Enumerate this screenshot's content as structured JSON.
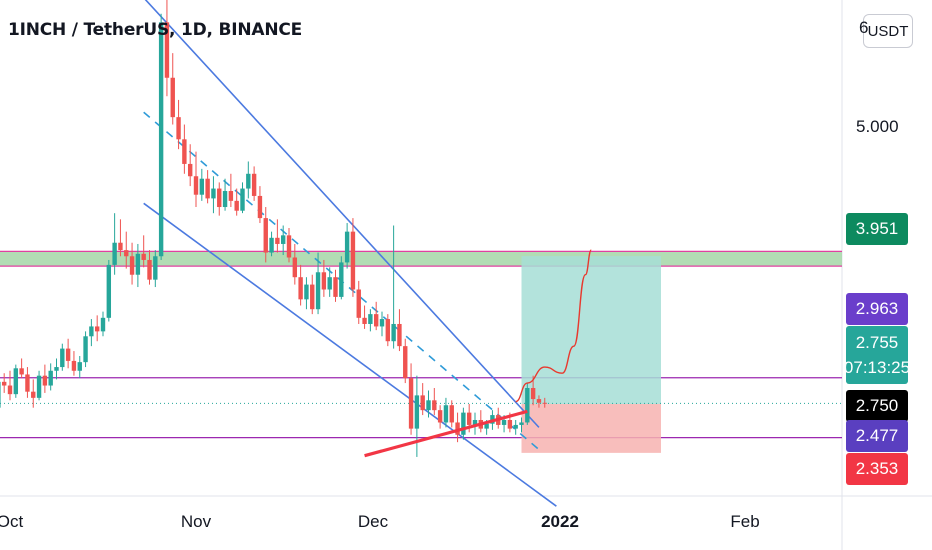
{
  "header": {
    "title": "1INCH / TetherUS, 1D, BINANCE",
    "currency_button": "USDT"
  },
  "price_axis": {
    "labels": [
      {
        "id": "top",
        "text": "6"
      },
      {
        "id": "five",
        "text": "5.000"
      }
    ],
    "tags": [
      {
        "id": "resistance",
        "text": "3.951",
        "color": "#0d8a5f"
      },
      {
        "id": "upper",
        "text": "2.963",
        "color": "#6a3ecb"
      },
      {
        "id": "last",
        "text": "2.755",
        "sub": "07:13:25",
        "color": "#26a69a"
      },
      {
        "id": "entry",
        "text": "2.750",
        "color": "#000000"
      },
      {
        "id": "lower",
        "text": "2.477",
        "color": "#5a3fc0"
      },
      {
        "id": "stop",
        "text": "2.353",
        "color": "#f23645"
      }
    ]
  },
  "time_axis": {
    "labels": [
      {
        "text": "Oct",
        "bold": false
      },
      {
        "text": "Nov",
        "bold": false
      },
      {
        "text": "Dec",
        "bold": false
      },
      {
        "text": "2022",
        "bold": true
      },
      {
        "text": "Feb",
        "bold": false
      }
    ]
  },
  "colors": {
    "up": "#26a69a",
    "down": "#ef5350",
    "channel": "#4c7ae0",
    "support": "#f23645",
    "level": "#9c27b0",
    "zone": "#a5d6a7",
    "target_zone": "#a6ded6",
    "stop_zone": "#f7b3b0"
  },
  "chart_data": {
    "type": "candlestick",
    "title": "1INCH / TetherUS, 1D, BINANCE",
    "xlabel": "",
    "ylabel": "",
    "y_unit": "USDT",
    "x_range": [
      "2021-09-28",
      "2022-02-28"
    ],
    "y_range": [
      2.05,
      6.2
    ],
    "start_date": "2021-09-28",
    "last_price": 2.755,
    "countdown": "07:13:25",
    "ohlc": [
      [
        2.58,
        2.75,
        2.52,
        2.72
      ],
      [
        2.72,
        2.98,
        2.68,
        2.93
      ],
      [
        2.93,
        3.0,
        2.84,
        2.9
      ],
      [
        2.9,
        3.02,
        2.78,
        2.83
      ],
      [
        2.83,
        3.07,
        2.8,
        3.04
      ],
      [
        3.04,
        3.12,
        2.96,
        2.99
      ],
      [
        2.99,
        3.05,
        2.8,
        2.85
      ],
      [
        2.85,
        2.95,
        2.72,
        2.8
      ],
      [
        2.8,
        3.02,
        2.78,
        2.98
      ],
      [
        2.98,
        3.07,
        2.84,
        2.9
      ],
      [
        2.9,
        3.08,
        2.86,
        3.02
      ],
      [
        3.02,
        3.12,
        2.95,
        3.05
      ],
      [
        3.05,
        3.24,
        3.02,
        3.2
      ],
      [
        3.2,
        3.28,
        3.04,
        3.1
      ],
      [
        3.1,
        3.18,
        2.98,
        3.02
      ],
      [
        3.02,
        3.14,
        2.96,
        3.09
      ],
      [
        3.09,
        3.34,
        3.05,
        3.3
      ],
      [
        3.3,
        3.44,
        3.22,
        3.38
      ],
      [
        3.38,
        3.47,
        3.26,
        3.34
      ],
      [
        3.34,
        3.5,
        3.3,
        3.45
      ],
      [
        3.45,
        3.92,
        3.42,
        3.88
      ],
      [
        3.88,
        4.3,
        3.8,
        4.06
      ],
      [
        4.06,
        4.25,
        3.95,
        4.0
      ],
      [
        4.0,
        4.15,
        3.85,
        3.95
      ],
      [
        3.95,
        4.06,
        3.72,
        3.8
      ],
      [
        3.8,
        4.05,
        3.7,
        3.97
      ],
      [
        3.97,
        4.12,
        3.86,
        3.92
      ],
      [
        3.92,
        4.0,
        3.72,
        3.76
      ],
      [
        3.76,
        4.0,
        3.7,
        3.95
      ],
      [
        3.95,
        5.92,
        3.92,
        5.85
      ],
      [
        5.85,
        6.12,
        5.25,
        5.4
      ],
      [
        5.4,
        5.6,
        5.02,
        5.08
      ],
      [
        5.08,
        5.22,
        4.82,
        4.9
      ],
      [
        4.9,
        5.02,
        4.62,
        4.7
      ],
      [
        4.7,
        4.86,
        4.52,
        4.6
      ],
      [
        4.6,
        4.8,
        4.35,
        4.45
      ],
      [
        4.45,
        4.66,
        4.4,
        4.58
      ],
      [
        4.58,
        4.65,
        4.38,
        4.42
      ],
      [
        4.42,
        4.6,
        4.3,
        4.5
      ],
      [
        4.5,
        4.55,
        4.28,
        4.35
      ],
      [
        4.35,
        4.58,
        4.32,
        4.48
      ],
      [
        4.48,
        4.62,
        4.35,
        4.4
      ],
      [
        4.4,
        4.5,
        4.28,
        4.32
      ],
      [
        4.32,
        4.55,
        4.3,
        4.5
      ],
      [
        4.5,
        4.72,
        4.42,
        4.62
      ],
      [
        4.62,
        4.68,
        4.4,
        4.44
      ],
      [
        4.44,
        4.52,
        4.22,
        4.26
      ],
      [
        4.26,
        4.35,
        3.9,
        3.98
      ],
      [
        3.98,
        4.15,
        3.95,
        4.1
      ],
      [
        4.1,
        4.25,
        3.98,
        4.05
      ],
      [
        4.05,
        4.2,
        3.96,
        4.12
      ],
      [
        4.12,
        4.18,
        3.9,
        3.94
      ],
      [
        3.94,
        4.05,
        3.72,
        3.78
      ],
      [
        3.78,
        3.88,
        3.55,
        3.6
      ],
      [
        3.6,
        3.78,
        3.52,
        3.72
      ],
      [
        3.72,
        3.8,
        3.48,
        3.52
      ],
      [
        3.52,
        3.98,
        3.48,
        3.82
      ],
      [
        3.82,
        3.92,
        3.62,
        3.68
      ],
      [
        3.68,
        3.86,
        3.62,
        3.78
      ],
      [
        3.78,
        3.84,
        3.58,
        3.62
      ],
      [
        3.62,
        3.95,
        3.6,
        3.9
      ],
      [
        3.9,
        4.22,
        3.85,
        4.15
      ],
      [
        4.15,
        4.26,
        3.62,
        3.68
      ],
      [
        3.68,
        3.75,
        3.4,
        3.45
      ],
      [
        3.45,
        3.55,
        3.36,
        3.4
      ],
      [
        3.4,
        3.52,
        3.34,
        3.48
      ],
      [
        3.48,
        3.58,
        3.35,
        3.38
      ],
      [
        3.38,
        3.5,
        3.3,
        3.44
      ],
      [
        3.44,
        3.48,
        3.22,
        3.26
      ],
      [
        3.26,
        4.2,
        3.2,
        3.4
      ],
      [
        3.4,
        3.52,
        3.18,
        3.22
      ],
      [
        3.22,
        3.28,
        2.92,
        2.96
      ],
      [
        2.96,
        3.08,
        2.5,
        2.55
      ],
      [
        2.55,
        2.98,
        2.32,
        2.82
      ],
      [
        2.82,
        2.92,
        2.66,
        2.7
      ],
      [
        2.7,
        2.86,
        2.64,
        2.78
      ],
      [
        2.78,
        2.88,
        2.66,
        2.7
      ],
      [
        2.7,
        2.74,
        2.55,
        2.6
      ],
      [
        2.6,
        2.8,
        2.56,
        2.74
      ],
      [
        2.74,
        2.78,
        2.56,
        2.6
      ],
      [
        2.6,
        2.68,
        2.44,
        2.5
      ],
      [
        2.5,
        2.72,
        2.46,
        2.68
      ],
      [
        2.68,
        2.75,
        2.52,
        2.58
      ],
      [
        2.58,
        2.68,
        2.5,
        2.62
      ],
      [
        2.62,
        2.7,
        2.52,
        2.55
      ],
      [
        2.55,
        2.62,
        2.5,
        2.59
      ],
      [
        2.59,
        2.7,
        2.54,
        2.66
      ],
      [
        2.66,
        2.72,
        2.55,
        2.58
      ],
      [
        2.58,
        2.66,
        2.52,
        2.62
      ],
      [
        2.62,
        2.68,
        2.52,
        2.55
      ],
      [
        2.55,
        2.62,
        2.5,
        2.58
      ],
      [
        2.58,
        2.64,
        2.52,
        2.6
      ],
      [
        2.6,
        2.92,
        2.58,
        2.88
      ],
      [
        2.88,
        2.98,
        2.74,
        2.79
      ],
      [
        2.79,
        2.82,
        2.72,
        2.76
      ],
      [
        2.76,
        2.8,
        2.72,
        2.755
      ]
    ],
    "horizontal_levels": [
      2.963,
      2.477
    ],
    "resistance_zone": [
      3.87,
      3.99
    ],
    "position": {
      "entry": 2.75,
      "target": 3.951,
      "stop": 2.353,
      "from": "2021-12-28",
      "to": "2022-01-21"
    },
    "descending_channel": [
      {
        "from": [
          "2021-10-24",
          6.05
        ],
        "to": [
          "2021-12-31",
          2.56
        ]
      },
      {
        "from": [
          "2021-10-24",
          4.38
        ],
        "to": [
          "2022-01-03",
          1.92
        ]
      }
    ],
    "channel_midline": {
      "from": [
        "2021-10-24",
        5.12
      ],
      "to": [
        "2021-12-31",
        2.38
      ]
    },
    "support_line": {
      "from": [
        "2021-12-01",
        2.33
      ],
      "to": [
        "2021-12-29",
        2.69
      ]
    },
    "projection": [
      [
        "2021-12-27",
        2.77
      ],
      [
        "2021-12-29",
        2.92
      ],
      [
        "2022-01-01",
        3.05
      ],
      [
        "2022-01-04",
        3.0
      ],
      [
        "2022-01-06",
        3.22
      ],
      [
        "2022-01-08",
        3.8
      ],
      [
        "2022-01-09",
        4.0
      ]
    ]
  }
}
